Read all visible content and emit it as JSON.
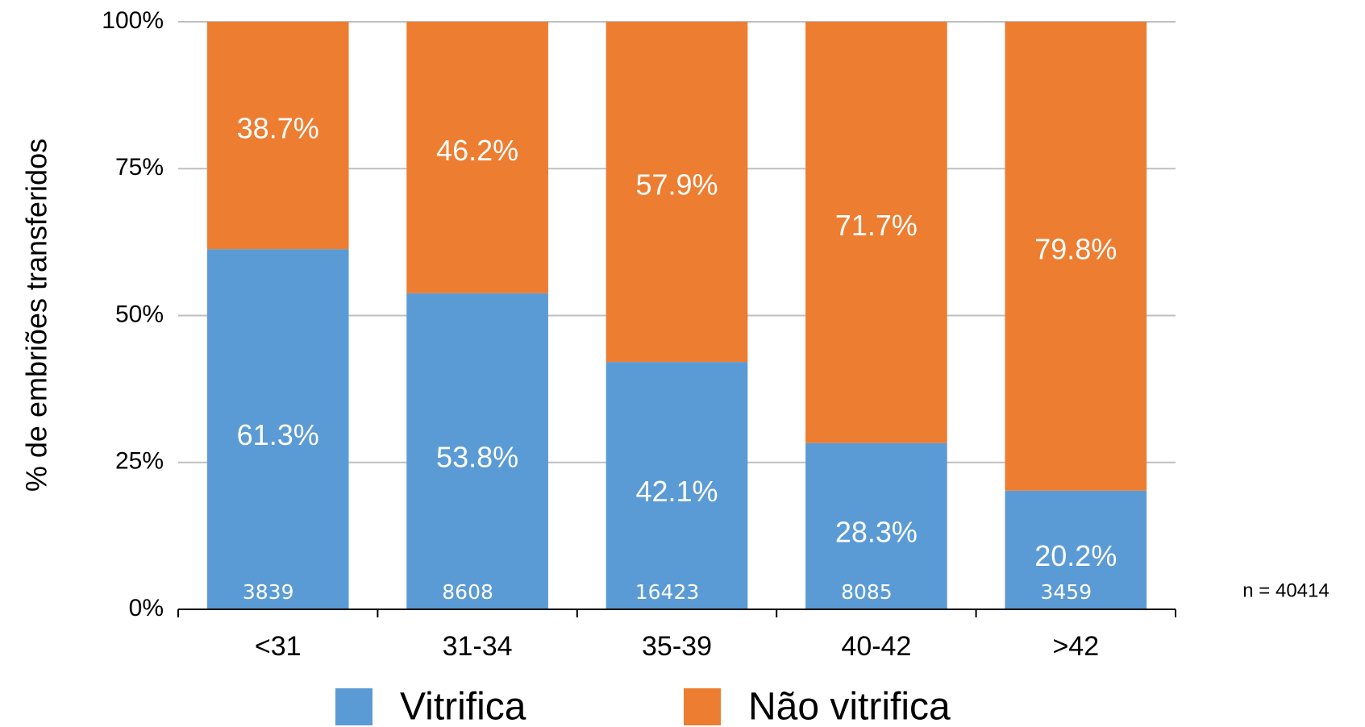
{
  "chart_data": {
    "type": "bar",
    "stacked": true,
    "y_label": "% de embriões transferidos",
    "categories": [
      "<31",
      "31-34",
      "35-39",
      "40-42",
      ">42"
    ],
    "series": [
      {
        "name": "Vitrifica",
        "color": "#5b9bd5",
        "values": [
          61.3,
          53.8,
          42.1,
          28.3,
          20.2
        ],
        "value_labels": [
          "61.3%",
          "53.8%",
          "42.1%",
          "28.3%",
          "20.2%"
        ]
      },
      {
        "name": "Não vitrifica",
        "color": "#ed7d31",
        "values": [
          38.7,
          46.2,
          57.9,
          71.7,
          79.8
        ],
        "value_labels": [
          "38.7%",
          "46.2%",
          "57.9%",
          "71.7%",
          "79.8%"
        ]
      }
    ],
    "sample_sizes": [
      3839,
      8608,
      16423,
      8085,
      3459
    ],
    "total_label": "n = 40414",
    "ylim": [
      0,
      100
    ],
    "yticks": [
      {
        "value": 0,
        "label": "0%"
      },
      {
        "value": 25,
        "label": "25%"
      },
      {
        "value": 50,
        "label": "50%"
      },
      {
        "value": 75,
        "label": "75%"
      },
      {
        "value": 100,
        "label": "100%"
      }
    ],
    "grid": true,
    "legend": "bottom"
  }
}
